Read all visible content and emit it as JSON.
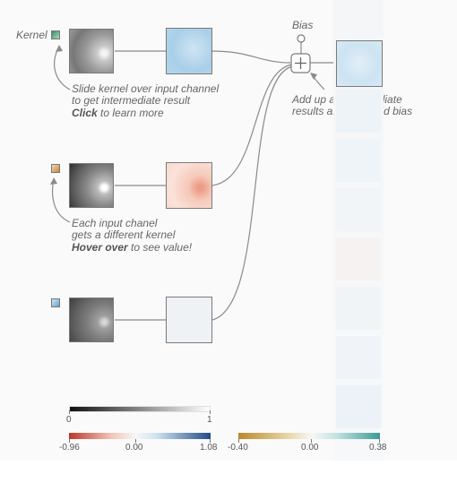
{
  "annotations": {
    "kernel_label": "Kernel",
    "bias_label": "Bias",
    "slide_line1": "Slide kernel over input channel",
    "slide_line2": "to get intermediate result",
    "slide_click": "Click",
    "slide_rest": " to learn more",
    "each_line1": "Each input chanel",
    "each_line2": "gets a different kernel",
    "each_hover": "Hover over",
    "each_rest": " to see value!",
    "addup_line1": "Add up all intermediate",
    "addup_line2": "results and then add bias"
  },
  "channels": [
    {
      "name": "channel-1",
      "kernel_color": "#4a9a78",
      "intermediate_fill": "blue"
    },
    {
      "name": "channel-2",
      "kernel_color": "#c88a3a",
      "intermediate_fill": "red"
    },
    {
      "name": "channel-3",
      "kernel_color": "#6aa3c8",
      "intermediate_fill": "neutral"
    }
  ],
  "legends": {
    "gray": {
      "min": "0",
      "max": "1"
    },
    "diverging": {
      "min": "-0.96",
      "mid": "0.00",
      "max": "1.08"
    },
    "bias": {
      "min": "-0.40",
      "mid": "0.00",
      "max": "0.38"
    }
  },
  "colors": {
    "neg_red": "#b93a2e",
    "pos_blue": "#214d86",
    "bias_neg": "#b98a2e",
    "bias_pos": "#3e9a95"
  }
}
